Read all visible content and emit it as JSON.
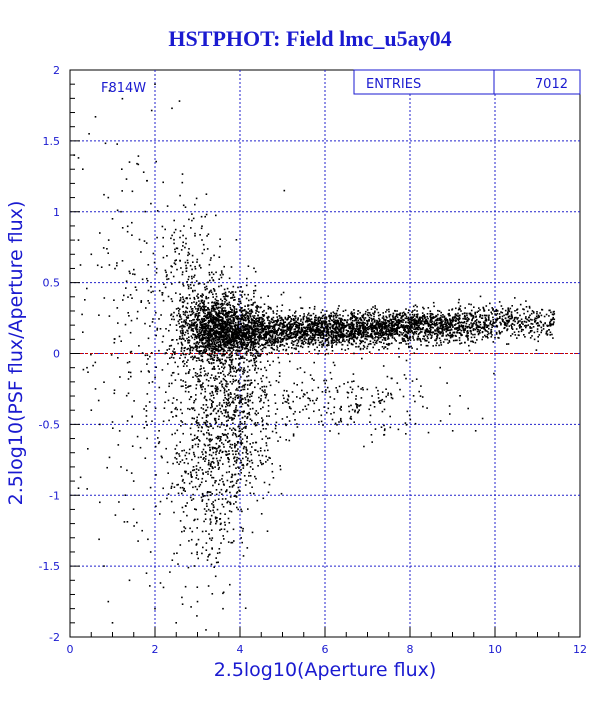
{
  "chart_data": {
    "type": "scatter",
    "title": "HSTPHOT: Field lmc_u5ay04",
    "filter_label": "F814W",
    "stats_box": {
      "label": "ENTRIES",
      "value": "7012"
    },
    "xlabel": "2.5log10(Aperture flux)",
    "ylabel": "2.5log10(PSF flux/Aperture flux)",
    "xlim": [
      0,
      12
    ],
    "ylim": [
      -2,
      2
    ],
    "xticks": [
      0,
      2,
      4,
      6,
      8,
      10,
      12
    ],
    "yticks": [
      -2,
      -1.5,
      -1,
      -0.5,
      0,
      0.5,
      1,
      1.5,
      2
    ],
    "grid": true,
    "reference_line": {
      "y": 0,
      "color": "#cc0000",
      "style": "dashed"
    },
    "n_points": 7012,
    "points": [
      [
        0.1,
        1.4
      ],
      [
        0.2,
        1.38
      ],
      [
        0.3,
        1.3
      ],
      [
        0.6,
        1.67
      ],
      [
        0.45,
        1.55
      ],
      [
        1.4,
        1.35
      ],
      [
        2.0,
        1.9
      ],
      [
        2.4,
        1.73
      ],
      [
        0.8,
        1.12
      ],
      [
        0.9,
        1.1
      ],
      [
        1.0,
        0.95
      ],
      [
        1.2,
        1.0
      ],
      [
        0.7,
        0.85
      ],
      [
        0.5,
        0.7
      ],
      [
        1.1,
        0.62
      ],
      [
        0.2,
        0.8
      ],
      [
        0.3,
        0.15
      ],
      [
        0.4,
        -0.1
      ],
      [
        0.6,
        -0.25
      ],
      [
        0.5,
        -0.4
      ],
      [
        0.7,
        -0.5
      ],
      [
        1.2,
        -0.8
      ],
      [
        1.5,
        -0.9
      ],
      [
        1.3,
        -1.0
      ],
      [
        0.2,
        -0.95
      ],
      [
        0.7,
        -1.05
      ],
      [
        0.8,
        -1.5
      ],
      [
        0.9,
        -1.75
      ],
      [
        1.0,
        -1.9
      ],
      [
        1.4,
        -1.6
      ],
      [
        1.8,
        -1.55
      ],
      [
        2.0,
        -1.8
      ],
      [
        2.2,
        -1.65
      ],
      [
        2.5,
        -1.9
      ],
      [
        3.0,
        -1.75
      ],
      [
        3.2,
        -1.95
      ],
      [
        3.6,
        -1.8
      ],
      [
        4.0,
        -1.7
      ],
      [
        1.7,
        -1.25
      ],
      [
        1.9,
        -1.4
      ]
    ],
    "clusters": [
      {
        "cx": 6.5,
        "cy": 0.17,
        "sx": 2.6,
        "sy": 0.06,
        "xmin": 3.0,
        "xmax": 11.4,
        "n": 3600,
        "slope": 0.012
      },
      {
        "cx": 3.6,
        "cy": 0.18,
        "sx": 0.55,
        "sy": 0.12,
        "xmin": 2.5,
        "xmax": 5.0,
        "n": 1300,
        "slope": 0
      },
      {
        "cx": 3.8,
        "cy": -0.35,
        "sx": 0.65,
        "sy": 0.35,
        "xmin": 2.3,
        "xmax": 5.5,
        "n": 1000,
        "slope": 0
      },
      {
        "cx": 3.3,
        "cy": -0.9,
        "sx": 0.5,
        "sy": 0.35,
        "xmin": 2.0,
        "xmax": 4.5,
        "n": 380,
        "slope": 0
      },
      {
        "cx": 2.9,
        "cy": 0.4,
        "sx": 0.4,
        "sy": 0.3,
        "xmin": 2.0,
        "xmax": 4.0,
        "n": 260,
        "slope": 0
      },
      {
        "cx": 1.8,
        "cy": 0.1,
        "sx": 0.7,
        "sy": 0.7,
        "xmin": 0.2,
        "xmax": 3.0,
        "n": 260,
        "slope": 0
      },
      {
        "cx": 6.5,
        "cy": -0.35,
        "sx": 1.4,
        "sy": 0.12,
        "xmin": 5.0,
        "xmax": 10.0,
        "n": 212,
        "slope": 0
      }
    ]
  }
}
